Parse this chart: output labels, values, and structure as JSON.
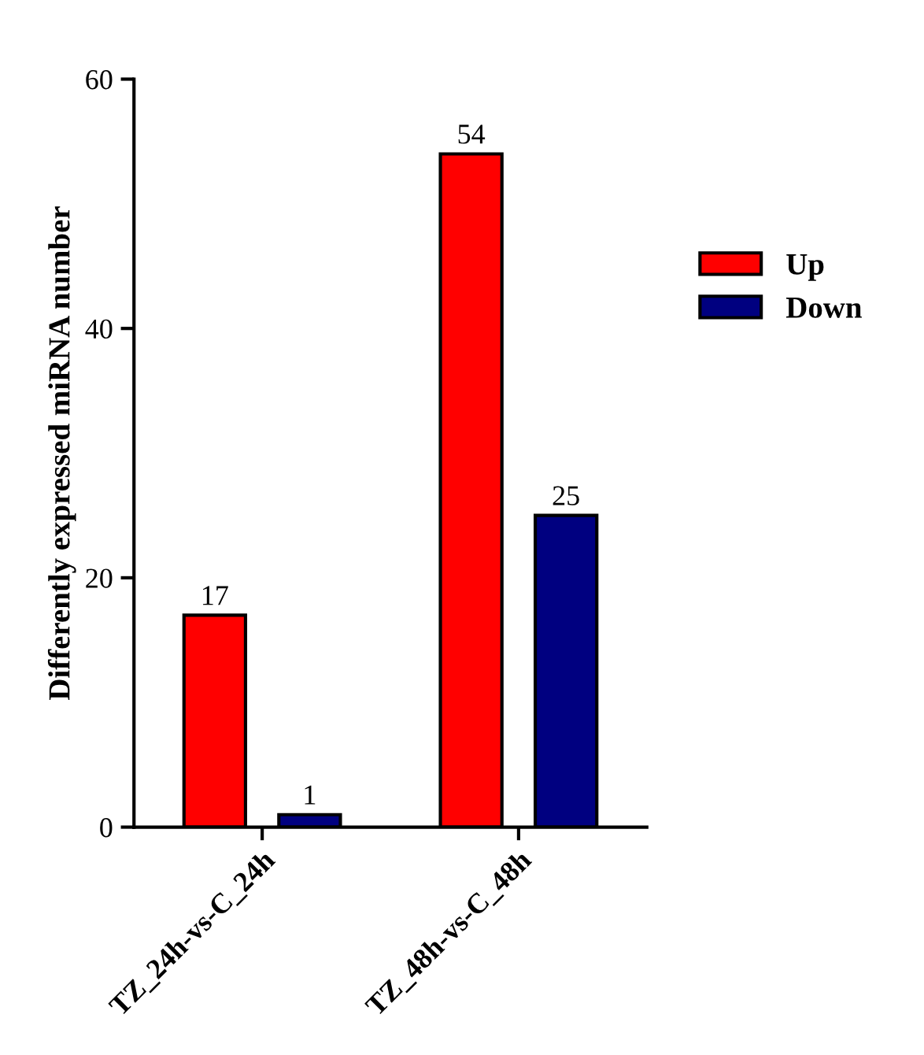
{
  "chart_data": {
    "type": "bar",
    "ylabel": "Differently expressed miRNA number",
    "categories": [
      "TZ_24h-vs-C_24h",
      "TZ_48h-vs-C_48h"
    ],
    "series": [
      {
        "name": "Up",
        "color": "#ff0000",
        "values": [
          17,
          54
        ]
      },
      {
        "name": "Down",
        "color": "#000080",
        "values": [
          1,
          25
        ]
      }
    ],
    "ylim": [
      0,
      60
    ],
    "yticks": [
      0,
      20,
      40,
      60
    ],
    "data_labels": true,
    "legend": "right",
    "grid": false
  }
}
